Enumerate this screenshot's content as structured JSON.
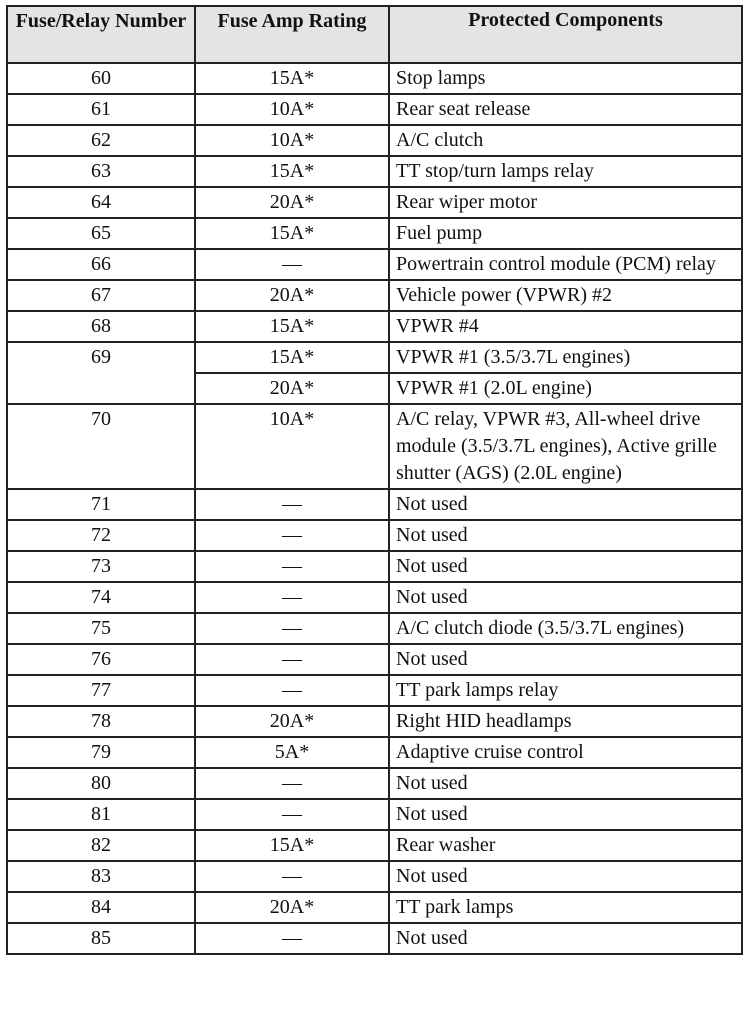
{
  "table": {
    "headers": [
      "Fuse/Relay Number",
      "Fuse Amp Rating",
      "Protected Components"
    ],
    "rows": [
      {
        "number": "60",
        "ratings": [
          {
            "amp": "15A*",
            "component": "Stop lamps"
          }
        ]
      },
      {
        "number": "61",
        "ratings": [
          {
            "amp": "10A*",
            "component": "Rear seat release"
          }
        ]
      },
      {
        "number": "62",
        "ratings": [
          {
            "amp": "10A*",
            "component": "A/C clutch"
          }
        ]
      },
      {
        "number": "63",
        "ratings": [
          {
            "amp": "15A*",
            "component": "TT stop/turn lamps relay"
          }
        ]
      },
      {
        "number": "64",
        "ratings": [
          {
            "amp": "20A*",
            "component": "Rear wiper motor"
          }
        ]
      },
      {
        "number": "65",
        "ratings": [
          {
            "amp": "15A*",
            "component": "Fuel pump"
          }
        ]
      },
      {
        "number": "66",
        "ratings": [
          {
            "amp": "—",
            "component": "Powertrain control module (PCM) relay"
          }
        ]
      },
      {
        "number": "67",
        "ratings": [
          {
            "amp": "20A*",
            "component": "Vehicle power (VPWR) #2"
          }
        ]
      },
      {
        "number": "68",
        "ratings": [
          {
            "amp": "15A*",
            "component": "VPWR #4"
          }
        ]
      },
      {
        "number": "69",
        "ratings": [
          {
            "amp": "15A*",
            "component": "VPWR #1 (3.5/3.7L engines)"
          },
          {
            "amp": "20A*",
            "component": "VPWR #1 (2.0L engine)"
          }
        ]
      },
      {
        "number": "70",
        "ratings": [
          {
            "amp": "10A*",
            "component": "A/C relay, VPWR #3, All-wheel drive module (3.5/3.7L engines), Active grille shutter (AGS) (2.0L engine)"
          }
        ]
      },
      {
        "number": "71",
        "ratings": [
          {
            "amp": "—",
            "component": "Not used"
          }
        ]
      },
      {
        "number": "72",
        "ratings": [
          {
            "amp": "—",
            "component": "Not used"
          }
        ]
      },
      {
        "number": "73",
        "ratings": [
          {
            "amp": "—",
            "component": "Not used"
          }
        ]
      },
      {
        "number": "74",
        "ratings": [
          {
            "amp": "—",
            "component": "Not used"
          }
        ]
      },
      {
        "number": "75",
        "ratings": [
          {
            "amp": "—",
            "component": "A/C clutch diode (3.5/3.7L engines)"
          }
        ]
      },
      {
        "number": "76",
        "ratings": [
          {
            "amp": "—",
            "component": "Not used"
          }
        ]
      },
      {
        "number": "77",
        "ratings": [
          {
            "amp": "—",
            "component": "TT park lamps relay"
          }
        ]
      },
      {
        "number": "78",
        "ratings": [
          {
            "amp": "20A*",
            "component": "Right HID headlamps"
          }
        ]
      },
      {
        "number": "79",
        "ratings": [
          {
            "amp": "5A*",
            "component": "Adaptive cruise control"
          }
        ]
      },
      {
        "number": "80",
        "ratings": [
          {
            "amp": "—",
            "component": "Not used"
          }
        ]
      },
      {
        "number": "81",
        "ratings": [
          {
            "amp": "—",
            "component": "Not used"
          }
        ]
      },
      {
        "number": "82",
        "ratings": [
          {
            "amp": "15A*",
            "component": "Rear washer"
          }
        ]
      },
      {
        "number": "83",
        "ratings": [
          {
            "amp": "—",
            "component": "Not used"
          }
        ]
      },
      {
        "number": "84",
        "ratings": [
          {
            "amp": "20A*",
            "component": "TT park lamps"
          }
        ]
      },
      {
        "number": "85",
        "ratings": [
          {
            "amp": "—",
            "component": "Not used"
          }
        ]
      }
    ]
  }
}
